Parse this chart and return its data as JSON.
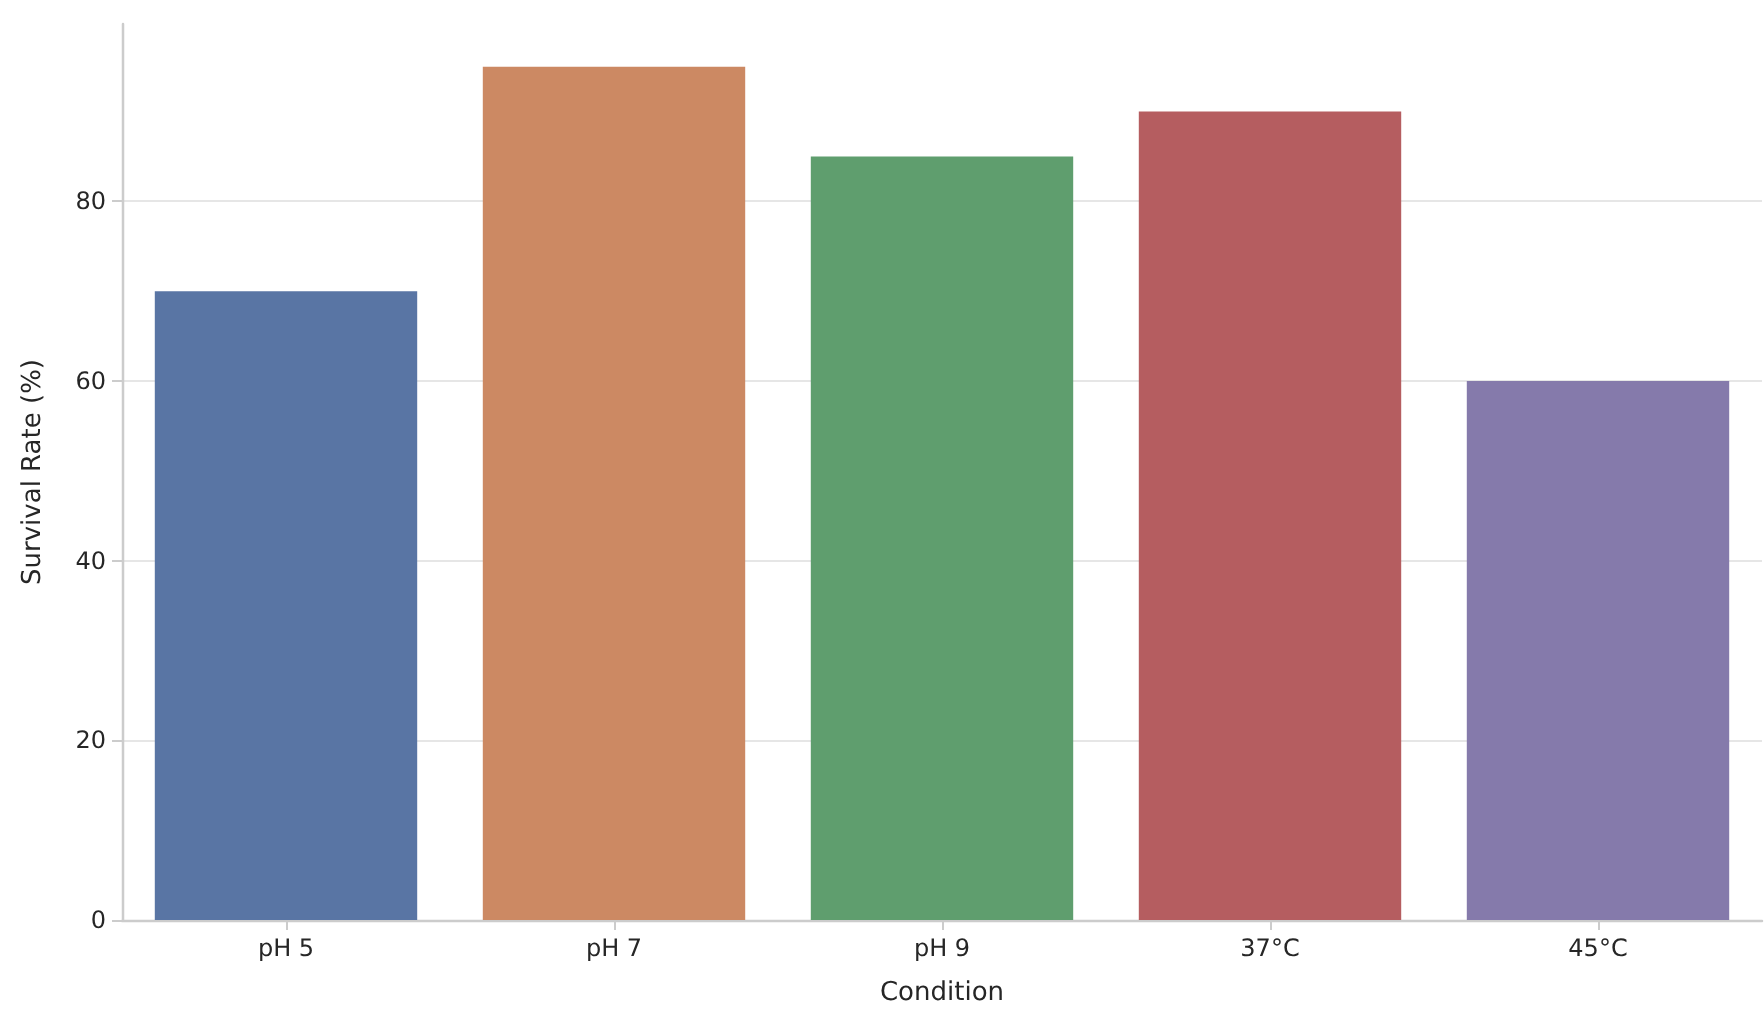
{
  "chart_data": {
    "type": "bar",
    "xlabel": "Condition",
    "ylabel": "Survival Rate (%)",
    "categories": [
      "pH 5",
      "pH 7",
      "pH 9",
      "37°C",
      "45°C"
    ],
    "values": [
      70,
      95,
      85,
      90,
      60
    ],
    "colors": [
      "#5975a4",
      "#cc8963",
      "#5f9e6e",
      "#b55d60",
      "#857aab"
    ],
    "ylim": [
      0,
      99.75
    ],
    "yticks": [
      0,
      20,
      40,
      60,
      80
    ],
    "grid": "y"
  }
}
